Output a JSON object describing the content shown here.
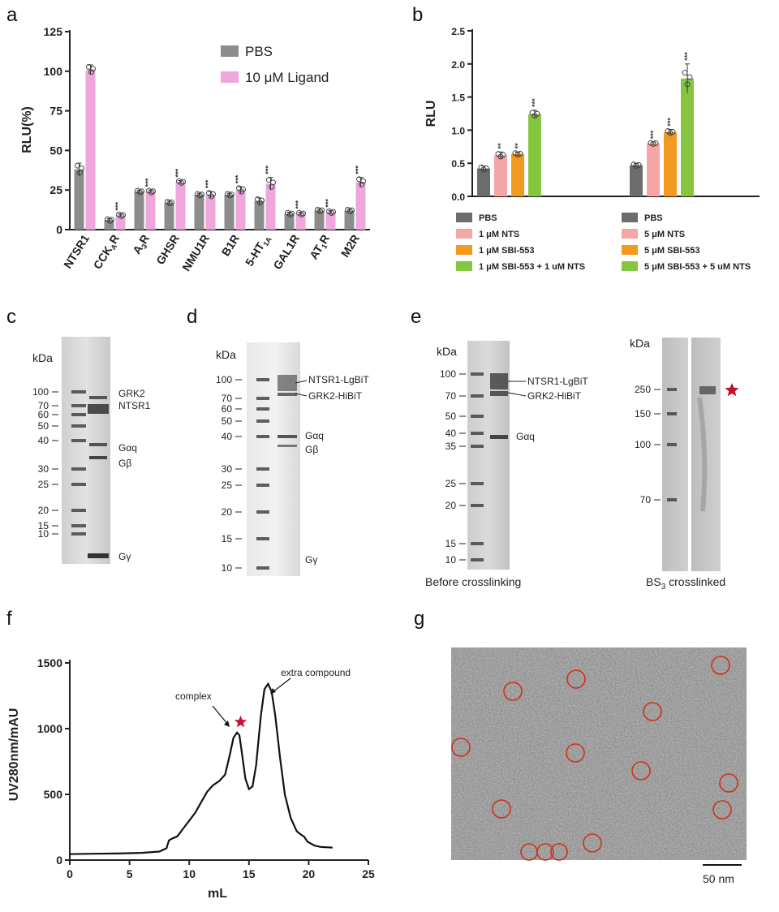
{
  "panels": {
    "a": "a",
    "b": "b",
    "c": "c",
    "d": "d",
    "e": "e",
    "f": "f",
    "g": "g"
  },
  "chart_data": [
    {
      "id": "a",
      "type": "bar",
      "ylabel": "RLU(%)",
      "ylim": [
        0,
        125
      ],
      "yticks": [
        "0",
        "25",
        "50",
        "75",
        "100",
        "125"
      ],
      "categories": [
        "NTSR1",
        "CCK_A R",
        "A3R",
        "GHSR",
        "NMU1R",
        "B1R",
        "5-HT1A",
        "GAL1R",
        "AT1R",
        "M2R"
      ],
      "category_labels": [
        "NTSR1",
        "CCK",
        "A",
        "GHSR",
        "NMU1R",
        "B1R",
        "5-HT",
        "GAL1R",
        "AT",
        "M2R"
      ],
      "category_subs": [
        "",
        "A",
        "3",
        "",
        "",
        "",
        "1A",
        "",
        "1",
        ""
      ],
      "category_tails": [
        "",
        "R",
        "R",
        "",
        "",
        "",
        "",
        "",
        "R",
        ""
      ],
      "legend": [
        "PBS",
        "10 μM Ligand"
      ],
      "series": [
        {
          "name": "PBS",
          "color": "#8c8c8c",
          "values": [
            38,
            6,
            24,
            17,
            22,
            22,
            18,
            10,
            12,
            12
          ],
          "err": [
            4,
            1,
            1,
            1,
            1,
            1,
            2,
            1,
            1,
            1
          ]
        },
        {
          "name": "10 μM Ligand",
          "color": "#eea6dc",
          "values": [
            101,
            9,
            24,
            30,
            22,
            25,
            29,
            10,
            11,
            30
          ],
          "err": [
            3,
            1,
            1,
            1,
            2,
            2,
            4,
            1,
            1,
            3
          ]
        }
      ],
      "significance": [
        "",
        "***",
        "***",
        "***",
        "***",
        "***",
        "***",
        "***",
        "***",
        "***"
      ]
    },
    {
      "id": "b",
      "type": "bar",
      "ylabel": "RLU",
      "ylim": [
        0,
        2.5
      ],
      "yticks": [
        "0.0",
        "0.5",
        "1.0",
        "1.5",
        "2.0",
        "2.5"
      ],
      "groups": [
        {
          "legend": [
            "PBS",
            "1 μM NTS",
            "1 μM SBI-553",
            "1 μM SBI-553 + 1 uM NTS"
          ],
          "values": [
            0.42,
            0.62,
            0.64,
            1.24
          ],
          "err": [
            0.04,
            0.05,
            0.03,
            0.06
          ],
          "sig": [
            "",
            "**",
            "**",
            "***"
          ]
        },
        {
          "legend": [
            "PBS",
            "5 μM NTS",
            "5 μM SBI-553",
            "5 μM SBI-553 + 5 uM NTS"
          ],
          "values": [
            0.47,
            0.8,
            0.97,
            1.78
          ],
          "err": [
            0.03,
            0.02,
            0.04,
            0.22
          ],
          "sig": [
            "",
            "***",
            "***",
            "***"
          ]
        }
      ],
      "colors": [
        "#6d6d6d",
        "#f4a6a6",
        "#f39a1e",
        "#86c63f"
      ]
    },
    {
      "id": "f",
      "type": "line",
      "xlabel": "mL",
      "ylabel": "UV280nm/mAU",
      "xlim": [
        0,
        25
      ],
      "ylim": [
        0,
        1500
      ],
      "xticks": [
        "0",
        "5",
        "10",
        "15",
        "20",
        "25"
      ],
      "yticks": [
        "0",
        "500",
        "1000",
        "1500"
      ],
      "x": [
        0,
        2,
        4,
        6,
        7.5,
        8.1,
        8.3,
        8.6,
        9,
        9.5,
        10,
        10.5,
        11,
        11.5,
        12,
        12.5,
        13,
        13.4,
        13.7,
        14,
        14.2,
        14.4,
        14.7,
        15,
        15.3,
        15.6,
        16,
        16.3,
        16.6,
        16.9,
        17.2,
        17.6,
        18,
        18.5,
        19,
        19.4,
        19.6,
        19.9,
        20.5,
        21,
        22
      ],
      "y": [
        45,
        48,
        50,
        55,
        65,
        90,
        150,
        165,
        180,
        240,
        300,
        360,
        440,
        520,
        570,
        600,
        650,
        800,
        930,
        970,
        950,
        820,
        620,
        540,
        560,
        720,
        1100,
        1300,
        1340,
        1280,
        1100,
        780,
        500,
        320,
        220,
        190,
        180,
        140,
        110,
        100,
        95
      ],
      "annotations": [
        "complex",
        "extra compound"
      ]
    }
  ],
  "gels": {
    "c": {
      "kda_label": "kDa",
      "markers": [
        "100",
        "70",
        "60",
        "50",
        "40",
        "30",
        "25",
        "20",
        "15",
        "10"
      ],
      "bands": [
        "GRK2",
        "NTSR1",
        "Gαq",
        "Gβ",
        "Gγ"
      ]
    },
    "d": {
      "kda_label": "kDa",
      "markers": [
        "100",
        "70",
        "60",
        "50",
        "40",
        "30",
        "25",
        "20",
        "15",
        "10"
      ],
      "bands": [
        "NTSR1-LgBiT",
        "GRK2-HiBiT",
        "Gαq",
        "Gβ",
        "Gγ"
      ]
    },
    "e1": {
      "kda_label": "kDa",
      "markers": [
        "100",
        "70",
        "50",
        "40",
        "35",
        "25",
        "20",
        "15",
        "10"
      ],
      "bands": [
        "NTSR1-LgBiT",
        "GRK2-HiBiT",
        "Gαq"
      ],
      "caption": "Before crosslinking"
    },
    "e2": {
      "kda_label": "kDa",
      "markers": [
        "250",
        "150",
        "100",
        "70"
      ],
      "caption_main": "BS",
      "caption_sub": "3",
      "caption_tail": " crosslinked"
    }
  },
  "micrograph": {
    "scale_label": "50 nm"
  },
  "colors": {
    "star": "#c8102e",
    "circle": "#d0301e"
  }
}
